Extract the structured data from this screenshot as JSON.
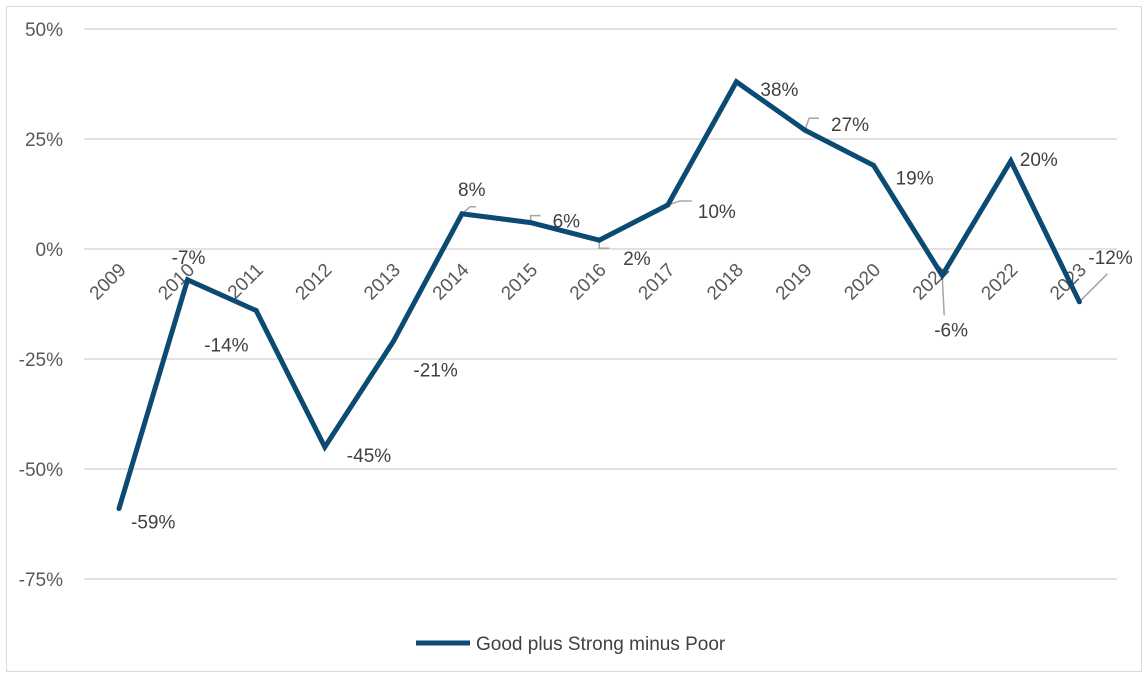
{
  "chart_data": {
    "type": "line",
    "title": "",
    "xlabel": "",
    "ylabel": "",
    "categories": [
      "2009",
      "2010",
      "2011",
      "2012",
      "2013",
      "2014",
      "2015",
      "2016",
      "2017",
      "2018",
      "2019",
      "2020",
      "2021",
      "2022",
      "2023"
    ],
    "series": [
      {
        "name": "Good plus Strong minus Poor",
        "values": [
          -0.59,
          -0.07,
          -0.14,
          -0.45,
          -0.21,
          0.08,
          0.06,
          0.02,
          0.1,
          0.38,
          0.27,
          0.19,
          -0.06,
          0.2,
          -0.12
        ],
        "data_labels": [
          "-59%",
          "-7%",
          "-14%",
          "-45%",
          "-21%",
          "8%",
          "6%",
          "2%",
          "10%",
          "38%",
          "27%",
          "19%",
          "-6%",
          "20%",
          "-12%"
        ],
        "color": "#0b4a72"
      }
    ],
    "ylim": [
      -0.75,
      0.5
    ],
    "yticks": [
      0.5,
      0.25,
      0,
      -0.25,
      -0.5,
      -0.75
    ],
    "ytick_labels": [
      "50%",
      "25%",
      "0%",
      "-25%",
      "-50%",
      "-75%"
    ],
    "grid": true,
    "gridline_color": "#d9d9d9",
    "legend_position": "bottom"
  }
}
